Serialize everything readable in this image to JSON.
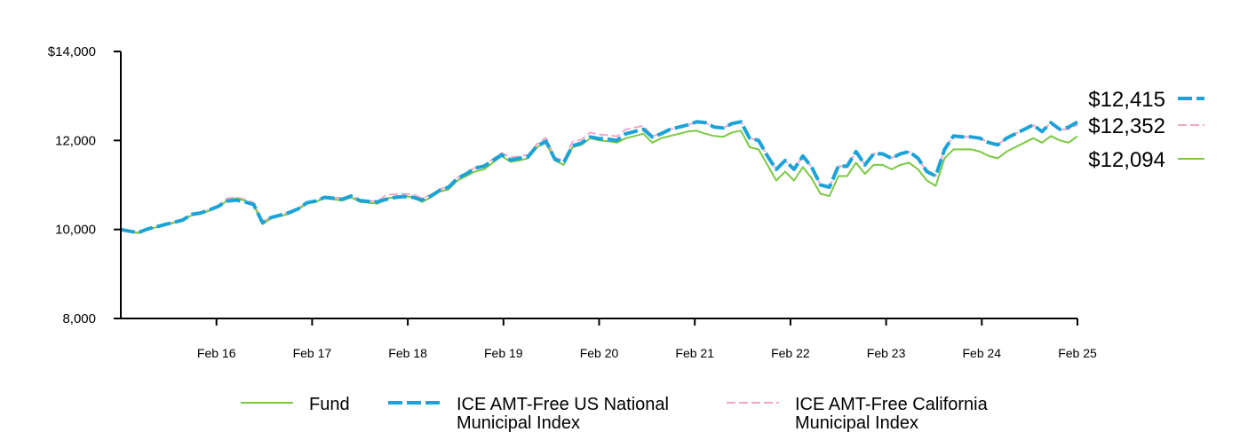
{
  "chart_data": {
    "type": "line",
    "title": "",
    "xlabel": "",
    "ylabel": "",
    "ylim": [
      8000,
      14000
    ],
    "y_ticks": [
      {
        "value": 8000,
        "label": "8,000"
      },
      {
        "value": 10000,
        "label": "10,000"
      },
      {
        "value": 12000,
        "label": "12,000"
      },
      {
        "value": 14000,
        "label": "$14,000"
      }
    ],
    "x_ticks": [
      "Feb 16",
      "Feb 17",
      "Feb 18",
      "Feb 19",
      "Feb 20",
      "Feb 21",
      "Feb 22",
      "Feb 23",
      "Feb 24",
      "Feb 25"
    ],
    "x_start": "Feb 15",
    "x_end": "Feb 25",
    "grid": false,
    "legend_position": "bottom",
    "series": [
      {
        "name": "Fund",
        "color": "#7ac943",
        "style": "solid",
        "end_label": "$12,094",
        "values": [
          10000,
          9950,
          9920,
          10000,
          10050,
          10100,
          10150,
          10200,
          10320,
          10350,
          10420,
          10500,
          10650,
          10700,
          10650,
          10550,
          10120,
          10250,
          10300,
          10350,
          10450,
          10580,
          10620,
          10700,
          10680,
          10650,
          10720,
          10620,
          10600,
          10580,
          10700,
          10720,
          10750,
          10720,
          10620,
          10720,
          10850,
          10900,
          11100,
          11200,
          11300,
          11350,
          11500,
          11650,
          11520,
          11550,
          11600,
          11850,
          11950,
          11550,
          11450,
          11850,
          11900,
          12050,
          12000,
          11980,
          11950,
          12050,
          12100,
          12150,
          11950,
          12050,
          12100,
          12150,
          12200,
          12220,
          12150,
          12100,
          12080,
          12180,
          12220,
          11850,
          11800,
          11450,
          11100,
          11300,
          11100,
          11400,
          11150,
          10800,
          10750,
          11200,
          11200,
          11500,
          11250,
          11450,
          11450,
          11350,
          11450,
          11500,
          11350,
          11100,
          10980,
          11600,
          11800,
          11800,
          11800,
          11750,
          11650,
          11600,
          11750,
          11850,
          11950,
          12050,
          11950,
          12100,
          12000,
          11950,
          12094
        ]
      },
      {
        "name": "ICE AMT-Free US National Municipal Index",
        "color": "#1ba3d8",
        "style": "dashed",
        "end_label": "$12,415",
        "values": [
          10000,
          9960,
          9930,
          10010,
          10060,
          10110,
          10160,
          10210,
          10340,
          10370,
          10440,
          10520,
          10640,
          10660,
          10620,
          10560,
          10150,
          10270,
          10320,
          10380,
          10460,
          10600,
          10640,
          10720,
          10700,
          10680,
          10750,
          10650,
          10630,
          10620,
          10680,
          10720,
          10740,
          10720,
          10660,
          10750,
          10880,
          10950,
          11150,
          11250,
          11380,
          11420,
          11550,
          11680,
          11560,
          11600,
          11640,
          11880,
          11980,
          11580,
          11500,
          11880,
          11940,
          12080,
          12040,
          12030,
          12000,
          12150,
          12200,
          12250,
          12080,
          12150,
          12250,
          12300,
          12350,
          12420,
          12400,
          12300,
          12280,
          12380,
          12420,
          12050,
          12000,
          11650,
          11350,
          11550,
          11350,
          11650,
          11400,
          11000,
          10950,
          11420,
          11420,
          11750,
          11450,
          11700,
          11700,
          11600,
          11700,
          11750,
          11600,
          11300,
          11200,
          11800,
          12100,
          12080,
          12080,
          12050,
          11950,
          11900,
          12050,
          12150,
          12250,
          12350,
          12200,
          12400,
          12250,
          12300,
          12415
        ]
      },
      {
        "name": "ICE AMT-Free California Municipal Index",
        "color": "#f4a6c8",
        "style": "dashed",
        "end_label": "$12,352",
        "values": [
          10000,
          9960,
          9930,
          10010,
          10060,
          10110,
          10160,
          10210,
          10340,
          10370,
          10440,
          10540,
          10700,
          10720,
          10680,
          10600,
          10170,
          10280,
          10330,
          10390,
          10470,
          10610,
          10650,
          10730,
          10720,
          10700,
          10760,
          10660,
          10640,
          10640,
          10780,
          10790,
          10800,
          10790,
          10700,
          10780,
          10900,
          10970,
          11160,
          11260,
          11390,
          11440,
          11580,
          11720,
          11620,
          11640,
          11680,
          11920,
          12060,
          11620,
          11540,
          11970,
          12020,
          12180,
          12130,
          12120,
          12090,
          12250,
          12290,
          12330,
          12090,
          12160,
          12250,
          12300,
          12350,
          12420,
          12400,
          12300,
          12280,
          12380,
          12420,
          12050,
          12000,
          11650,
          11350,
          11550,
          11350,
          11650,
          11400,
          11000,
          10950,
          11420,
          11420,
          11750,
          11450,
          11700,
          11700,
          11600,
          11700,
          11750,
          11600,
          11300,
          11200,
          11800,
          12100,
          12080,
          12080,
          12050,
          11950,
          11900,
          12050,
          12150,
          12250,
          12350,
          12200,
          12400,
          12250,
          12250,
          12352
        ]
      }
    ]
  }
}
